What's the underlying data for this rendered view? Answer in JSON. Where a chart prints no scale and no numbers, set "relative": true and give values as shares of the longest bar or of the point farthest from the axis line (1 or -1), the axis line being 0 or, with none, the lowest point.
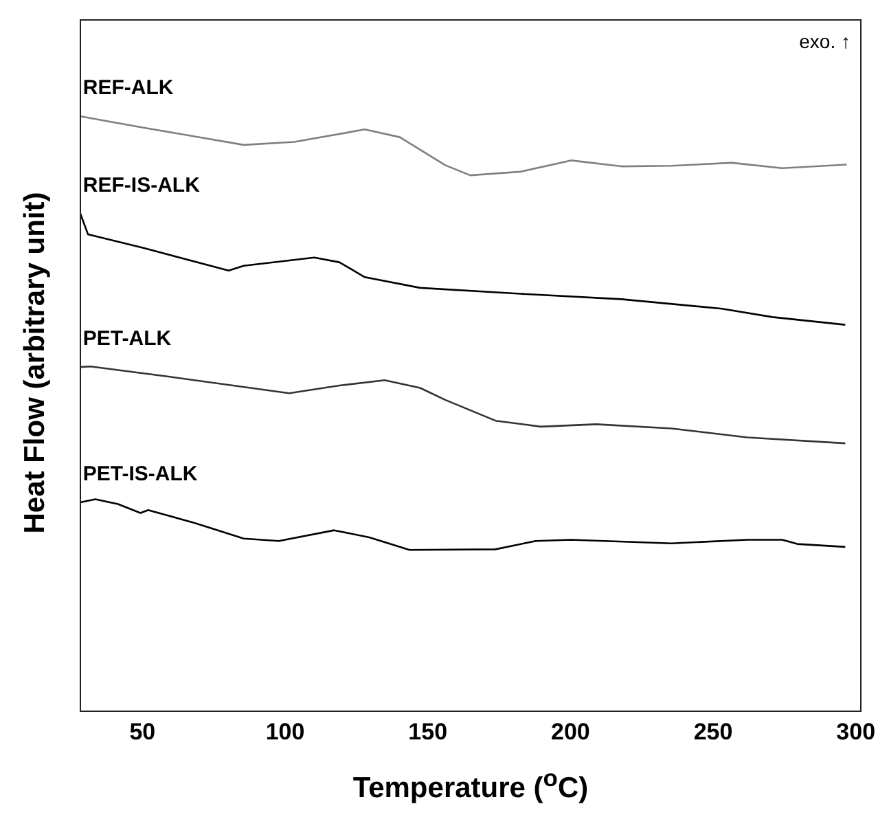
{
  "chart_data": {
    "type": "line",
    "xlabel": "Temperature ($^{o}$C)",
    "ylabel": "Heat Flow (arbitrary unit)",
    "annotations": [
      "exo. ↑"
    ],
    "relative": true,
    "tick_labels": "x",
    "xlim": [
      28,
      302
    ],
    "xticks": [
      50,
      100,
      150,
      200,
      250,
      300
    ],
    "series": [
      {
        "name": "REF-ALK",
        "color": "#7f7f7f",
        "x": [
          28.2,
          50.3,
          85.5,
          103.2,
          127.9,
          140.2,
          156.1,
          164.9,
          182.5,
          200.2,
          217.8,
          235.4,
          256.6,
          274.2,
          296.8
        ],
        "values": [
          1.0,
          0.981,
          0.952,
          0.957,
          0.978,
          0.965,
          0.918,
          0.901,
          0.907,
          0.926,
          0.916,
          0.917,
          0.922,
          0.913,
          0.919
        ]
      },
      {
        "name": "REF-IS-ALK",
        "color": "#000000",
        "x": [
          28.2,
          30.9,
          50.3,
          80.2,
          85.5,
          110.2,
          119,
          127.9,
          147.3,
          182.5,
          217.8,
          253.1,
          270.7,
          296.3
        ],
        "values": [
          0.837,
          0.802,
          0.779,
          0.741,
          0.749,
          0.763,
          0.755,
          0.73,
          0.712,
          0.702,
          0.693,
          0.677,
          0.663,
          0.65
        ]
      },
      {
        "name": "PET-ALK",
        "color": "#333333",
        "x": [
          28.2,
          31.7,
          59.1,
          101.4,
          119,
          134.9,
          147.3,
          156.1,
          173.7,
          189.6,
          209,
          235.4,
          261.9,
          296.3
        ],
        "values": [
          0.579,
          0.58,
          0.563,
          0.535,
          0.548,
          0.557,
          0.544,
          0.524,
          0.489,
          0.479,
          0.483,
          0.476,
          0.461,
          0.451
        ]
      },
      {
        "name": "PET-IS-ALK",
        "color": "#000000",
        "x": [
          28.2,
          33.5,
          41.4,
          49.3,
          52,
          67.8,
          85.5,
          97.8,
          117.2,
          129.5,
          143.6,
          173.7,
          187.8,
          200.2,
          235.4,
          261.9,
          274.2,
          279.5,
          296.3
        ],
        "values": [
          0.352,
          0.357,
          0.349,
          0.334,
          0.339,
          0.318,
          0.291,
          0.287,
          0.305,
          0.293,
          0.272,
          0.273,
          0.287,
          0.289,
          0.283,
          0.289,
          0.289,
          0.282,
          0.277
        ]
      }
    ]
  }
}
